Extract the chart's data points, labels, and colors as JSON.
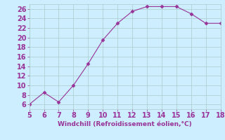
{
  "x_data": [
    5,
    6,
    7,
    8,
    9,
    10,
    11,
    12,
    13,
    14,
    15,
    16,
    17,
    18
  ],
  "y_data": [
    6,
    8.5,
    6.5,
    10,
    14.5,
    19.5,
    23,
    25.5,
    26.5,
    26.5,
    26.5,
    25,
    23,
    23
  ],
  "xlim": [
    5,
    18
  ],
  "ylim": [
    5,
    27
  ],
  "yticks": [
    6,
    8,
    10,
    12,
    14,
    16,
    18,
    20,
    22,
    24,
    26
  ],
  "xticks": [
    5,
    6,
    7,
    8,
    9,
    10,
    11,
    12,
    13,
    14,
    15,
    16,
    17,
    18
  ],
  "xlabel": "Windchill (Refroidissement éolien,°C)",
  "line_color": "#993399",
  "marker": "D",
  "marker_size": 2.5,
  "bg_color": "#cceeff",
  "grid_color": "#aacccc",
  "tick_color": "#993399",
  "label_color": "#993399",
  "tick_fontsize": 7,
  "xlabel_fontsize": 6.5
}
